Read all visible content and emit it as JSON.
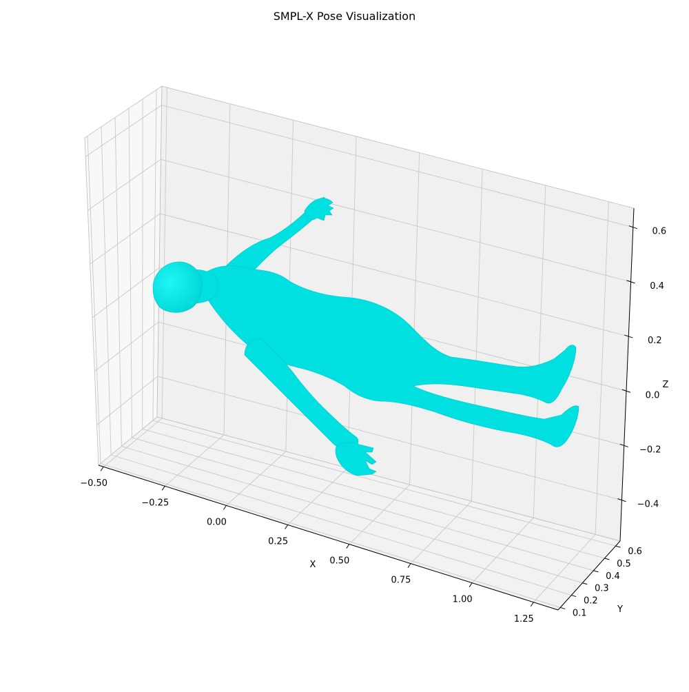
{
  "chart_data": {
    "type": "mesh3d",
    "title": "SMPL-X Pose Visualization",
    "xlabel": "X",
    "ylabel": "Y",
    "zlabel": "Z",
    "x_ticks": [
      "−0.50",
      "−0.25",
      "0.00",
      "0.25",
      "0.50",
      "0.75",
      "1.00",
      "1.25"
    ],
    "y_ticks": [
      "0.1",
      "0.2",
      "0.3",
      "0.4",
      "0.5",
      "0.6"
    ],
    "z_ticks": [
      "−0.4",
      "−0.2",
      "0.0",
      "0.2",
      "0.4",
      "0.6"
    ],
    "xlim": [
      -0.52,
      1.35
    ],
    "ylim": [
      0.08,
      0.64
    ],
    "zlim": [
      -0.55,
      0.67
    ],
    "grid": true,
    "mesh_color": "#00e5e5"
  }
}
